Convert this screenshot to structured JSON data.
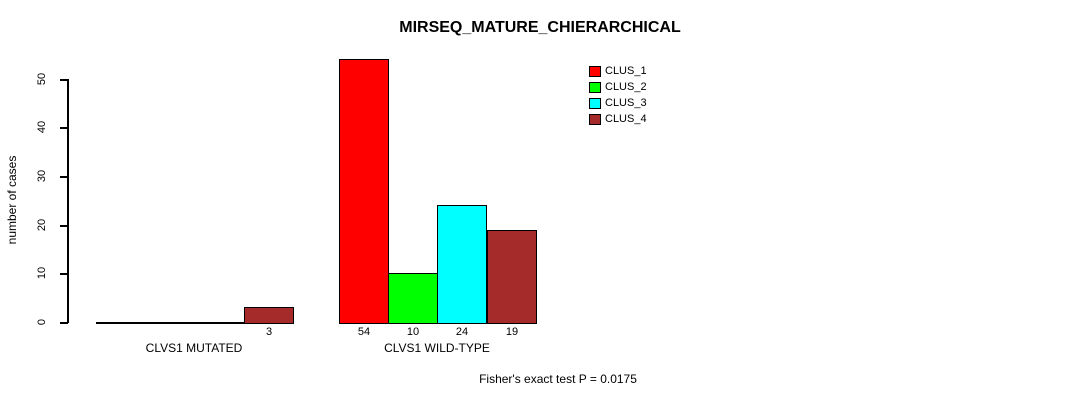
{
  "title": "MIRSEQ_MATURE_CHIERARCHICAL",
  "chart_data": {
    "type": "bar",
    "title": "MIRSEQ_MATURE_CHIERARCHICAL",
    "xlabel": "",
    "ylabel": "number of cases",
    "ylim": [
      0,
      50
    ],
    "yticks": [
      0,
      10,
      20,
      30,
      40,
      50
    ],
    "grid": false,
    "categories": [
      "CLVS1 MUTATED",
      "CLVS1 WILD-TYPE"
    ],
    "series": [
      {
        "name": "CLUS_1",
        "color": "#ff0000",
        "values": [
          0,
          54
        ]
      },
      {
        "name": "CLUS_2",
        "color": "#00ff00",
        "values": [
          0,
          10
        ]
      },
      {
        "name": "CLUS_3",
        "color": "#00ffff",
        "values": [
          0,
          24
        ]
      },
      {
        "name": "CLUS_4",
        "color": "#a52a2a",
        "values": [
          3,
          19
        ]
      }
    ],
    "bar_value_labels": [
      [
        "",
        "",
        "",
        "3"
      ],
      [
        "54",
        "10",
        "24",
        "19"
      ]
    ],
    "legend_position": "top-right",
    "legend_entries": [
      "CLUS_1",
      "CLUS_2",
      "CLUS_3",
      "CLUS_4"
    ],
    "annotation": "Fisher's exact test P = 0.0175"
  }
}
